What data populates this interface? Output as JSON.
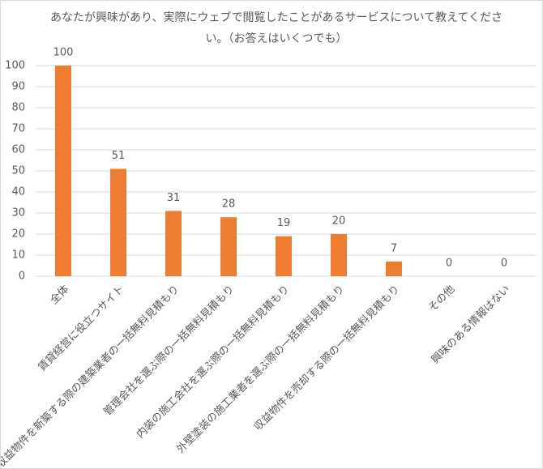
{
  "chart_data": {
    "type": "bar",
    "title": "あなたが興味があり、実際にウェブで閲覧したことがあるサービスについて教えてください。（お答えはいくつでも）",
    "categories": [
      "全体",
      "賃貸経営に役立つサイト",
      "収益物件を新築する際の建築業者の一括無料見積もり",
      "管理会社を選ぶ際の一括無料見積もり",
      "内装の施工会社を選ぶ際の一括無料見積もり",
      "外壁塗装の施工業者を選ぶ際の一括無料見積もり",
      "収益物件を売却する際の一括無料見積もり",
      "その他",
      "興味のある情報はない"
    ],
    "values": [
      100,
      51,
      31,
      28,
      19,
      20,
      7,
      0,
      0
    ],
    "color": "#ed7d31",
    "ylim": [
      0,
      100
    ],
    "yticks": [
      0,
      10,
      20,
      30,
      40,
      50,
      60,
      70,
      80,
      90,
      100
    ],
    "grid": true
  }
}
